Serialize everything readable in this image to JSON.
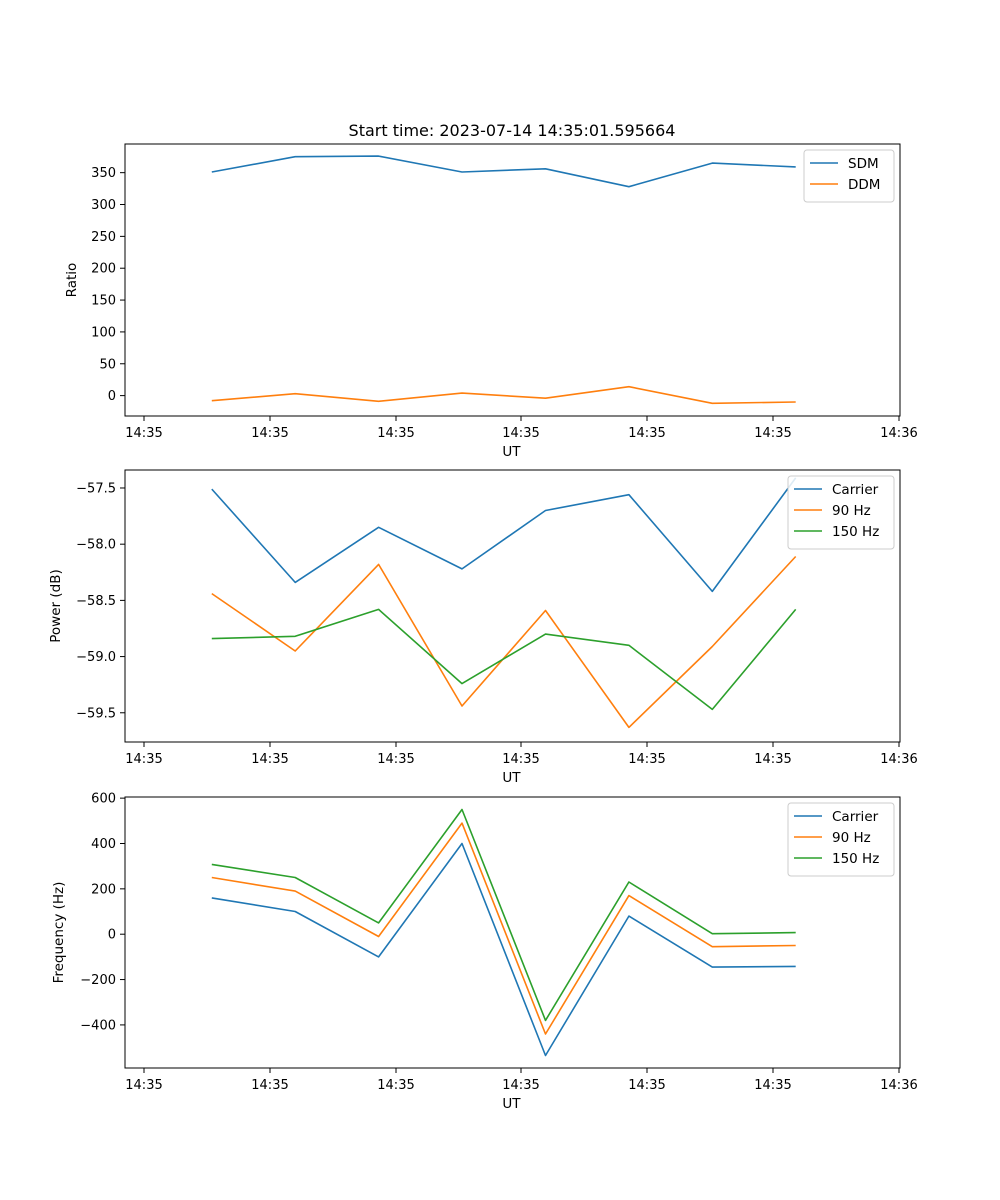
{
  "figure": {
    "title": "Start time: 2023-07-14 14:35:01.595664"
  },
  "chart_data": [
    {
      "type": "line",
      "title": "Start time: 2023-07-14 14:35:01.595664",
      "xlabel": "UT",
      "ylabel": "Ratio",
      "x_tick_labels": [
        "14:35",
        "14:35",
        "14:35",
        "14:35",
        "14:35",
        "14:35",
        "14:36"
      ],
      "xlim": [
        -0.54,
        8.75
      ],
      "ylim": [
        -32,
        395
      ],
      "yticks": [
        0,
        50,
        100,
        150,
        200,
        250,
        300,
        350
      ],
      "y_tick_labels": [
        "0",
        "50",
        "100",
        "150",
        "200",
        "250",
        "300",
        "350"
      ],
      "legend_position": "top-right",
      "series": [
        {
          "name": "SDM",
          "color": "#1f77b4",
          "x": [
            0.5,
            1.5,
            2.5,
            3.5,
            4.5,
            5.5,
            6.5,
            7.5
          ],
          "values": [
            351,
            375,
            376,
            351,
            356,
            328,
            365,
            359
          ]
        },
        {
          "name": "DDM",
          "color": "#ff7f0e",
          "x": [
            0.5,
            1.5,
            2.5,
            3.5,
            4.5,
            5.5,
            6.5,
            7.5
          ],
          "values": [
            -8,
            3,
            -9,
            4,
            -4,
            14,
            -12,
            -10
          ]
        }
      ]
    },
    {
      "type": "line",
      "title": "",
      "xlabel": "UT",
      "ylabel": "Power (dB)",
      "x_tick_labels": [
        "14:35",
        "14:35",
        "14:35",
        "14:35",
        "14:35",
        "14:35",
        "14:36"
      ],
      "xlim": [
        -0.54,
        8.75
      ],
      "ylim": [
        -59.76,
        -57.34
      ],
      "yticks": [
        -59.5,
        -59.0,
        -58.5,
        -58.0,
        -57.5
      ],
      "y_tick_labels": [
        "−59.5",
        "−59.0",
        "−58.5",
        "−58.0",
        "−57.5"
      ],
      "legend_position": "top-right",
      "series": [
        {
          "name": "Carrier",
          "color": "#1f77b4",
          "x": [
            0.5,
            1.5,
            2.5,
            3.5,
            4.5,
            5.5,
            6.5,
            7.5
          ],
          "values": [
            -57.51,
            -58.34,
            -57.85,
            -58.22,
            -57.7,
            -57.56,
            -58.42,
            -57.41
          ]
        },
        {
          "name": "90 Hz",
          "color": "#ff7f0e",
          "x": [
            0.5,
            1.5,
            2.5,
            3.5,
            4.5,
            5.5,
            6.5,
            7.5
          ],
          "values": [
            -58.44,
            -58.95,
            -58.18,
            -59.44,
            -58.59,
            -59.63,
            -58.91,
            -58.11
          ]
        },
        {
          "name": "150 Hz",
          "color": "#2ca02c",
          "x": [
            0.5,
            1.5,
            2.5,
            3.5,
            4.5,
            5.5,
            6.5,
            7.5
          ],
          "values": [
            -58.84,
            -58.82,
            -58.58,
            -59.24,
            -58.8,
            -58.9,
            -59.47,
            -58.58
          ]
        }
      ]
    },
    {
      "type": "line",
      "title": "",
      "xlabel": "UT",
      "ylabel": "Frequency (Hz)",
      "x_tick_labels": [
        "14:35",
        "14:35",
        "14:35",
        "14:35",
        "14:35",
        "14:35",
        "14:36"
      ],
      "xlim": [
        -0.54,
        8.75
      ],
      "ylim": [
        -590,
        605
      ],
      "yticks": [
        -400,
        -200,
        0,
        200,
        400,
        600
      ],
      "y_tick_labels": [
        "−400",
        "−200",
        "0",
        "200",
        "400",
        "600"
      ],
      "legend_position": "top-right",
      "series": [
        {
          "name": "Carrier",
          "color": "#1f77b4",
          "x": [
            0.5,
            1.5,
            2.5,
            3.5,
            4.5,
            5.5,
            6.5,
            7.5
          ],
          "values": [
            160,
            100,
            -100,
            400,
            -535,
            80,
            -145,
            -142
          ]
        },
        {
          "name": "90 Hz",
          "color": "#ff7f0e",
          "x": [
            0.5,
            1.5,
            2.5,
            3.5,
            4.5,
            5.5,
            6.5,
            7.5
          ],
          "values": [
            250,
            190,
            -10,
            490,
            -440,
            170,
            -55,
            -50
          ]
        },
        {
          "name": "150 Hz",
          "color": "#2ca02c",
          "x": [
            0.5,
            1.5,
            2.5,
            3.5,
            4.5,
            5.5,
            6.5,
            7.5
          ],
          "values": [
            308,
            250,
            50,
            550,
            -380,
            230,
            2,
            7
          ]
        }
      ]
    }
  ]
}
